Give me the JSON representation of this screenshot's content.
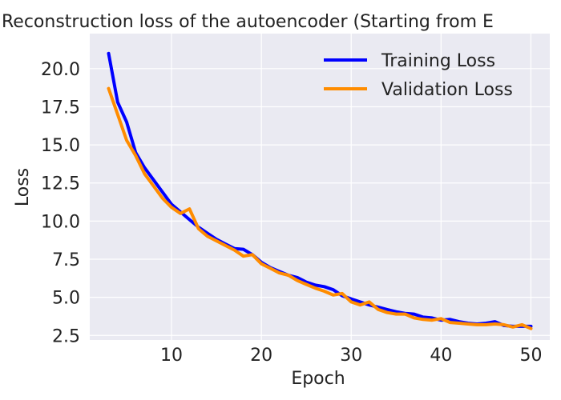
{
  "chart_data": {
    "type": "line",
    "title": "Reconstruction loss of the autoencoder (Starting from E",
    "xlabel": "Epoch",
    "ylabel": "Loss",
    "xlim": [
      0.9,
      52.1
    ],
    "ylim": [
      2.2,
      22.3
    ],
    "xticks": [
      10,
      20,
      30,
      40,
      50
    ],
    "yticks": [
      2.5,
      5.0,
      7.5,
      10.0,
      12.5,
      15.0,
      17.5,
      20.0
    ],
    "xtick_labels": [
      "10",
      "20",
      "30",
      "40",
      "50"
    ],
    "ytick_labels": [
      "2.5",
      "5.0",
      "7.5",
      "10.0",
      "12.5",
      "15.0",
      "17.5",
      "20.0"
    ],
    "grid": true,
    "legend_position": "top-right",
    "background": "#eaeaf2",
    "x": [
      3,
      4,
      5,
      6,
      7,
      8,
      9,
      10,
      11,
      12,
      13,
      14,
      15,
      16,
      17,
      18,
      19,
      20,
      21,
      22,
      23,
      24,
      25,
      26,
      27,
      28,
      29,
      30,
      31,
      32,
      33,
      34,
      35,
      36,
      37,
      38,
      39,
      40,
      41,
      42,
      43,
      44,
      45,
      46,
      47,
      48,
      49,
      50
    ],
    "series": [
      {
        "name": "Training Loss",
        "color": "#0000ff",
        "values": [
          21.0,
          17.8,
          16.5,
          14.5,
          13.5,
          12.7,
          11.9,
          11.1,
          10.6,
          10.1,
          9.6,
          9.2,
          8.8,
          8.5,
          8.2,
          8.15,
          7.8,
          7.3,
          6.95,
          6.7,
          6.45,
          6.3,
          6.0,
          5.8,
          5.7,
          5.5,
          5.1,
          4.9,
          4.7,
          4.5,
          4.35,
          4.2,
          4.05,
          3.95,
          3.9,
          3.7,
          3.65,
          3.5,
          3.55,
          3.4,
          3.3,
          3.25,
          3.3,
          3.4,
          3.15,
          3.1,
          3.1,
          3.1
        ]
      },
      {
        "name": "Validation Loss",
        "color": "#ff8c00",
        "values": [
          18.7,
          17.0,
          15.3,
          14.3,
          13.1,
          12.3,
          11.5,
          10.9,
          10.5,
          10.8,
          9.5,
          9.0,
          8.7,
          8.4,
          8.1,
          7.7,
          7.8,
          7.2,
          6.9,
          6.6,
          6.45,
          6.1,
          5.85,
          5.6,
          5.4,
          5.15,
          5.25,
          4.7,
          4.5,
          4.7,
          4.2,
          4.0,
          3.9,
          3.9,
          3.65,
          3.55,
          3.5,
          3.6,
          3.35,
          3.3,
          3.25,
          3.2,
          3.2,
          3.25,
          3.2,
          3.05,
          3.2,
          2.95
        ]
      }
    ]
  }
}
